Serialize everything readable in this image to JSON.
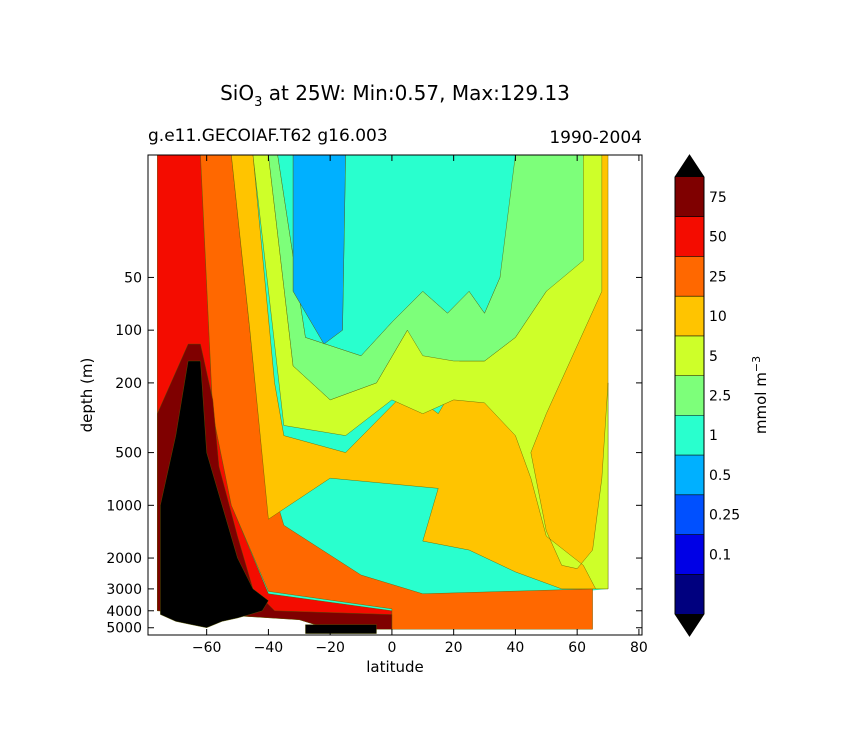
{
  "chart_data": {
    "type": "contourf",
    "title": "SiO",
    "title_sub": "3",
    "title_rest": " at 25W: Min:0.57, Max:129.13",
    "left_subtitle": "g.e11.GECOIAF.T62 g16.003",
    "right_subtitle": "1990-2004",
    "xlabel": "latitude",
    "ylabel": "depth (m)",
    "xlim": [
      -79,
      81
    ],
    "ylim": [
      5500,
      10
    ],
    "yscale": "log",
    "x_ticks": [
      -60,
      -40,
      -20,
      0,
      20,
      40,
      60,
      80
    ],
    "x_tick_labels": [
      "−60",
      "−40",
      "−20",
      "0",
      "20",
      "40",
      "60",
      "80"
    ],
    "y_ticks": [
      50,
      100,
      200,
      500,
      1000,
      2000,
      3000,
      4000,
      5000
    ],
    "y_tick_labels": [
      "50",
      "100",
      "200",
      "500",
      "1000",
      "2000",
      "3000",
      "4000",
      "5000"
    ],
    "colorbar": {
      "label": "mmol m",
      "label_sup": "−3",
      "levels": [
        0.1,
        0.25,
        0.5,
        1,
        2.5,
        5,
        10,
        25,
        50,
        75
      ],
      "level_labels": [
        "0.1",
        "0.25",
        "0.5",
        "1",
        "2.5",
        "5",
        "10",
        "25",
        "50",
        "75"
      ],
      "colors": [
        "#00007f",
        "#0000e6",
        "#0050ff",
        "#00b0ff",
        "#29ffce",
        "#7dff7a",
        "#ceff29",
        "#ffc400",
        "#ff6800",
        "#f40c00",
        "#7f0000"
      ],
      "under_color": "#000000",
      "over_color": "#000000"
    },
    "regions": [
      {
        "level": "red",
        "color": "#f40c00",
        "outline": [
          [
            -76,
            10
          ],
          [
            -62,
            10
          ],
          [
            -58,
            300
          ],
          [
            -52,
            1000
          ],
          [
            -40,
            3200
          ],
          [
            0,
            4000
          ],
          [
            0,
            5100
          ],
          [
            -20,
            5100
          ],
          [
            -30,
            4500
          ],
          [
            -76,
            4000
          ]
        ]
      },
      {
        "level": "orange",
        "color": "#ff6800",
        "outline": [
          [
            -62,
            10
          ],
          [
            -52,
            10
          ],
          [
            -46,
            100
          ],
          [
            -42,
            500
          ],
          [
            -35,
            1300
          ],
          [
            -10,
            2500
          ],
          [
            10,
            3200
          ],
          [
            65,
            3000
          ],
          [
            65,
            5100
          ],
          [
            0,
            5100
          ],
          [
            0,
            3900
          ],
          [
            -40,
            3100
          ],
          [
            -52,
            1000
          ],
          [
            -58,
            300
          ]
        ]
      },
      {
        "level": "10",
        "color": "#ffc400",
        "outline": [
          [
            -52,
            10
          ],
          [
            -45,
            10
          ],
          [
            -38,
            200
          ],
          [
            -35,
            400
          ],
          [
            -15,
            500
          ],
          [
            5,
            220
          ],
          [
            15,
            300
          ],
          [
            25,
            150
          ],
          [
            35,
            300
          ],
          [
            45,
            260
          ],
          [
            52,
            120
          ],
          [
            60,
            70
          ],
          [
            66,
            10
          ],
          [
            70,
            10
          ],
          [
            70,
            3000
          ],
          [
            55,
            3000
          ],
          [
            40,
            2400
          ],
          [
            25,
            1800
          ],
          [
            10,
            1600
          ],
          [
            15,
            800
          ],
          [
            -20,
            700
          ],
          [
            -40,
            1200
          ],
          [
            -46,
            100
          ]
        ]
      },
      {
        "level": "5",
        "color": "#ceff29",
        "outline": [
          [
            -45,
            10
          ],
          [
            -40,
            10
          ],
          [
            -32,
            160
          ],
          [
            -20,
            250
          ],
          [
            -5,
            200
          ],
          [
            5,
            100
          ],
          [
            15,
            140
          ],
          [
            22,
            150
          ],
          [
            30,
            150
          ],
          [
            40,
            110
          ],
          [
            50,
            60
          ],
          [
            58,
            40
          ],
          [
            62,
            10
          ],
          [
            68,
            10
          ],
          [
            68,
            60
          ],
          [
            50,
            300
          ],
          [
            45,
            500
          ],
          [
            50,
            1400
          ],
          [
            55,
            2200
          ],
          [
            60,
            2300
          ],
          [
            65,
            1800
          ],
          [
            68,
            700
          ],
          [
            70,
            200
          ],
          [
            70,
            3000
          ],
          [
            66,
            3000
          ],
          [
            62,
            2200
          ],
          [
            50,
            1500
          ],
          [
            45,
            700
          ],
          [
            40,
            400
          ],
          [
            30,
            260
          ],
          [
            20,
            250
          ],
          [
            10,
            300
          ],
          [
            0,
            250
          ],
          [
            -15,
            400
          ],
          [
            -35,
            350
          ]
        ]
      },
      {
        "level": "2.5",
        "color": "#7dff7a",
        "outline": [
          [
            -40,
            10
          ],
          [
            -37,
            10
          ],
          [
            -28,
            110
          ],
          [
            -10,
            140
          ],
          [
            0,
            90
          ],
          [
            10,
            60
          ],
          [
            18,
            80
          ],
          [
            25,
            60
          ],
          [
            30,
            80
          ],
          [
            35,
            50
          ],
          [
            38,
            10
          ],
          [
            62,
            10
          ],
          [
            62,
            40
          ],
          [
            50,
            60
          ],
          [
            40,
            110
          ],
          [
            30,
            150
          ],
          [
            20,
            150
          ],
          [
            10,
            140
          ],
          [
            5,
            100
          ],
          [
            -5,
            200
          ],
          [
            -20,
            250
          ],
          [
            -32,
            160
          ]
        ]
      },
      {
        "level": "1",
        "color": "#29ffce",
        "outline": [
          [
            -37,
            10
          ],
          [
            -32,
            10
          ],
          [
            -32,
            60
          ],
          [
            -22,
            120
          ],
          [
            -16,
            100
          ],
          [
            -15,
            10
          ],
          [
            40,
            10
          ],
          [
            35,
            50
          ],
          [
            30,
            80
          ],
          [
            25,
            60
          ],
          [
            18,
            80
          ],
          [
            10,
            60
          ],
          [
            0,
            90
          ],
          [
            -10,
            140
          ],
          [
            -28,
            110
          ]
        ]
      },
      {
        "level": "0.5",
        "color": "#00b0ff",
        "outline": [
          [
            -32,
            10
          ],
          [
            -15,
            10
          ],
          [
            -16,
            100
          ],
          [
            -22,
            120
          ],
          [
            -32,
            60
          ]
        ]
      },
      {
        "level": "75",
        "color": "#7f0000",
        "outline": [
          [
            -76,
            300
          ],
          [
            -66,
            120
          ],
          [
            -62,
            120
          ],
          [
            -58,
            250
          ],
          [
            -56,
            600
          ],
          [
            -50,
            1500
          ],
          [
            -45,
            3000
          ],
          [
            -38,
            4000
          ],
          [
            0,
            4200
          ],
          [
            0,
            5100
          ],
          [
            -20,
            5100
          ],
          [
            -30,
            4500
          ],
          [
            -76,
            4000
          ]
        ]
      },
      {
        "level": "under",
        "color": "#000000",
        "outline": [
          [
            -75,
            1000
          ],
          [
            -70,
            400
          ],
          [
            -66,
            150
          ],
          [
            -62,
            150
          ],
          [
            -60,
            500
          ],
          [
            -55,
            1000
          ],
          [
            -50,
            2000
          ],
          [
            -45,
            3000
          ],
          [
            -40,
            3500
          ],
          [
            -42,
            4000
          ],
          [
            -46,
            4200
          ],
          [
            -50,
            4400
          ],
          [
            -55,
            4600
          ],
          [
            -60,
            5000
          ],
          [
            -65,
            4800
          ],
          [
            -70,
            4600
          ],
          [
            -75,
            4200
          ]
        ]
      },
      {
        "level": "under-seamount",
        "color": "#000000",
        "outline": [
          [
            -28,
            4800
          ],
          [
            -5,
            4800
          ],
          [
            -5,
            5400
          ],
          [
            -28,
            5400
          ]
        ]
      }
    ]
  }
}
